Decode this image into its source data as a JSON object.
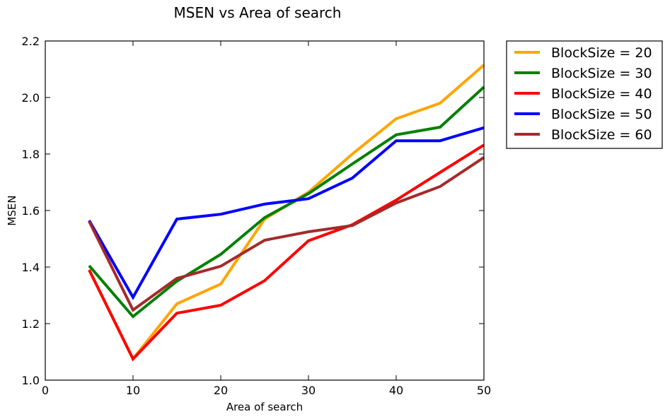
{
  "chart_data": {
    "type": "line",
    "title": "MSEN vs Area of search",
    "xlabel": "Area of search",
    "ylabel": "MSEN",
    "xlim": [
      0,
      50
    ],
    "ylim": [
      1.0,
      2.2
    ],
    "xticks": [
      "0",
      "10",
      "20",
      "30",
      "40",
      "50"
    ],
    "yticks": [
      "1.0",
      "1.2",
      "1.4",
      "1.6",
      "1.8",
      "2.0",
      "2.2"
    ],
    "grid": false,
    "legend_position": "outside-top-right",
    "x": [
      5,
      10,
      15,
      20,
      25,
      30,
      35,
      40,
      45,
      50
    ],
    "series": [
      {
        "name": "BlockSize = 20",
        "color": "#FFA500",
        "values": [
          1.39,
          1.075,
          1.27,
          1.34,
          1.57,
          1.665,
          1.8,
          1.925,
          1.98,
          2.115
        ]
      },
      {
        "name": "BlockSize = 30",
        "color": "#008000",
        "values": [
          1.405,
          1.225,
          1.35,
          1.445,
          1.575,
          1.66,
          1.765,
          1.868,
          1.895,
          2.037
        ]
      },
      {
        "name": "BlockSize = 40",
        "color": "#FF0000",
        "values": [
          1.39,
          1.075,
          1.237,
          1.265,
          1.352,
          1.493,
          1.55,
          1.637,
          1.735,
          1.832
        ]
      },
      {
        "name": "BlockSize = 50",
        "color": "#0000FF",
        "values": [
          1.565,
          1.293,
          1.57,
          1.587,
          1.623,
          1.642,
          1.715,
          1.847,
          1.847,
          1.893
        ]
      },
      {
        "name": "BlockSize = 60",
        "color": "#A52A2A",
        "values": [
          1.562,
          1.248,
          1.36,
          1.403,
          1.495,
          1.525,
          1.547,
          1.627,
          1.685,
          1.788
        ]
      }
    ]
  }
}
